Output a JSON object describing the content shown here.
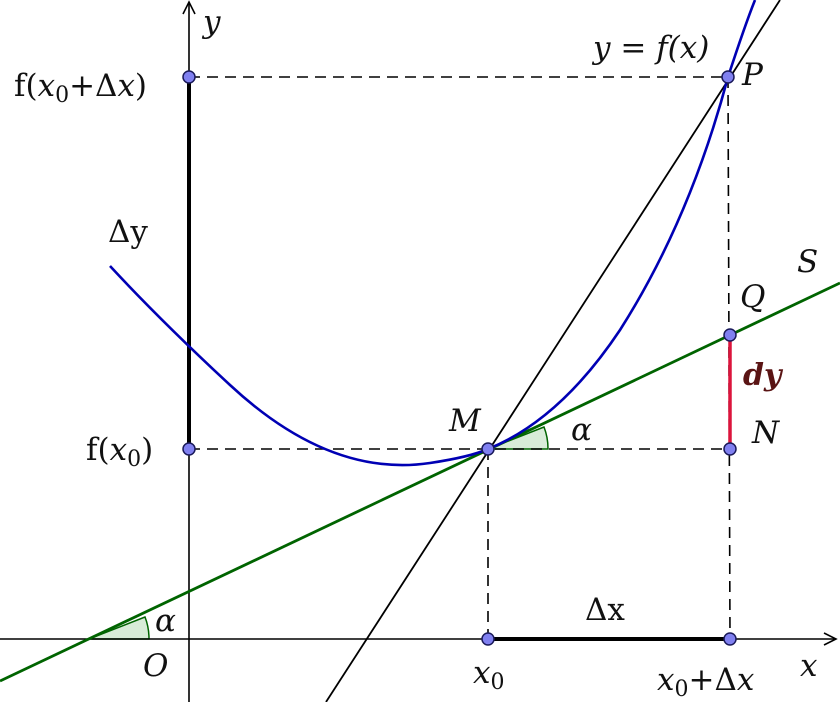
{
  "diagram": {
    "axis_labels": {
      "x": "x",
      "y": "y",
      "origin": "O"
    },
    "curve_label": "y = f(x)",
    "tangent_label": "S",
    "angle_label": "α",
    "points": {
      "M": "M",
      "P": "P",
      "Q": "Q",
      "N": "N"
    },
    "y_ticks": {
      "fx0": {
        "f": "f(",
        "x": "x",
        "sub": "0",
        "close": ")"
      },
      "fx0dx": {
        "f": "f(",
        "x": "x",
        "sub": "0",
        "plus": "+Δ",
        "x2": "x",
        "close": ")"
      }
    },
    "x_ticks": {
      "x0": {
        "x": "x",
        "sub": "0"
      },
      "x0dx": {
        "x": "x",
        "sub": "0",
        "plus": "+Δ",
        "x2": "x"
      }
    },
    "delta_y": "Δy",
    "delta_x": "Δx",
    "differential": "dy",
    "colors": {
      "curve": "#0000b4",
      "tangent": "#006400",
      "secant": "#000000",
      "differential": "#dc143c",
      "angle_fill": "#d8ecd8",
      "point_fill": "#8080f0"
    }
  }
}
